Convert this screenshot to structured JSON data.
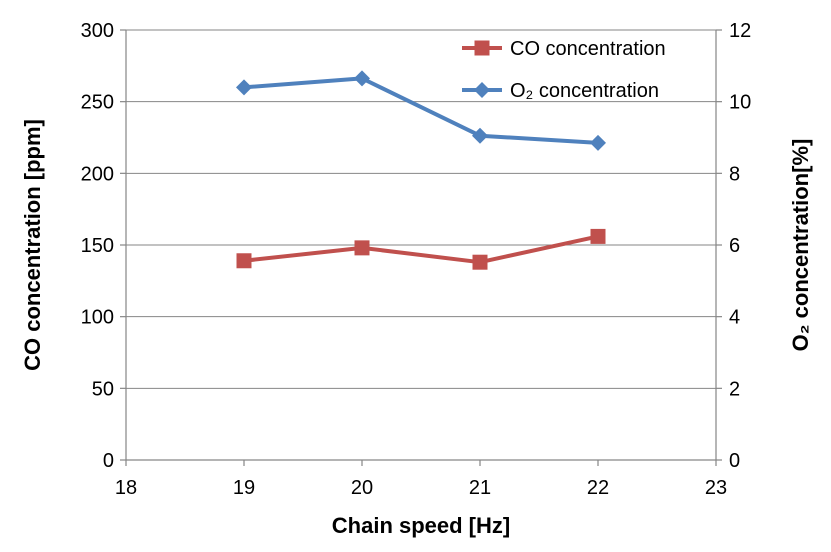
{
  "chart_data": {
    "type": "line",
    "xlabel": "Chain speed [Hz]",
    "ylabel": "CO concentration [ppm]",
    "y2label": "O₂ concentration[%]",
    "xlim": [
      18,
      23
    ],
    "ylim": [
      0,
      300
    ],
    "y2lim": [
      0,
      12
    ],
    "xticks": [
      "18",
      "19",
      "20",
      "21",
      "22",
      "23"
    ],
    "yticks": [
      "0",
      "50",
      "100",
      "150",
      "200",
      "250",
      "300"
    ],
    "y2ticks": [
      "0",
      "2",
      "4",
      "6",
      "8",
      "10",
      "12"
    ],
    "grid": "horizontal",
    "legend_position": "top-right",
    "series": [
      {
        "name": "CO concentration",
        "axis": "left",
        "color": "#c0504d",
        "marker": "square",
        "x": [
          19,
          20,
          21,
          22
        ],
        "values": [
          139,
          148,
          138,
          156
        ]
      },
      {
        "name": "O₂ concentration",
        "axis": "right",
        "color": "#4f81bd",
        "marker": "diamond",
        "x": [
          19,
          20,
          21,
          22
        ],
        "values": [
          10.4,
          10.65,
          9.05,
          8.85
        ]
      }
    ]
  }
}
